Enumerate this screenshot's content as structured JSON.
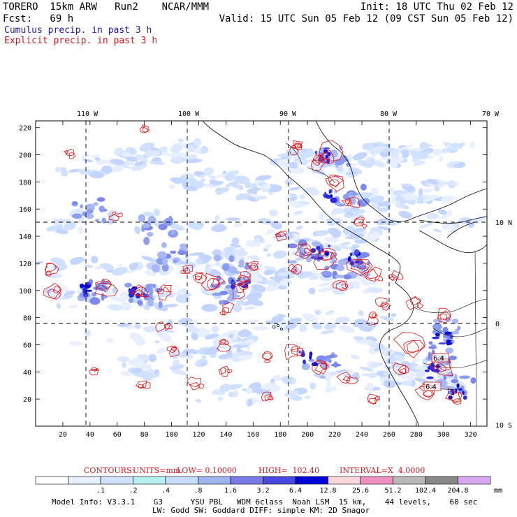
{
  "header": {
    "left1": "TORERO  15km ARW   Run2    NCAR/MMM",
    "right1": "Init: 18 UTC Thu 02 Feb 12",
    "left2": "Fcst:   69 h",
    "right2": "Valid: 15 UTC Sun 05 Feb 12 (09 CST Sun 05 Feb 12)",
    "field1": "Cumulus precip. in past 3 h",
    "field2": "Explicit precip. in past 3 h"
  },
  "map": {
    "lon_labels": [
      "110 W",
      "100 W",
      "90 W",
      "80 W",
      "70 W"
    ],
    "lat_labels": [
      "10 N",
      "0",
      "10 S"
    ],
    "x_ticks": [
      "20",
      "40",
      "60",
      "80",
      "100",
      "120",
      "140",
      "160",
      "180",
      "200",
      "220",
      "240",
      "260",
      "280",
      "300",
      "320"
    ],
    "y_ticks": [
      "20",
      "40",
      "60",
      "80",
      "100",
      "120",
      "140",
      "160",
      "180",
      "200",
      "220"
    ],
    "box_labels": [
      "6.4",
      "6.4"
    ]
  },
  "contours_line": {
    "title": "CONTOURS:",
    "units": "UNITS=mm",
    "low": "LOW= 0.10000",
    "high": "HIGH=  102.40",
    "interval": "INTERVAL=X  4.0000"
  },
  "colorbar": {
    "labels": [
      ".1",
      ".2",
      ".4",
      ".8",
      "1.6",
      "3.2",
      "6.4",
      "12.8",
      "25.6",
      "51.2",
      "102.4",
      "204.8"
    ],
    "unit": "mm",
    "colors": [
      "#ffffff",
      "#e6f0ff",
      "#d0e2ff",
      "#b8f0f0",
      "#c8dcff",
      "#a0b4f0",
      "#7878e8",
      "#4848e0",
      "#0000d8",
      "#f8d8dc",
      "#f090c0",
      "#b8b8b8",
      "#888888",
      "#d8a8f0"
    ]
  },
  "footer": {
    "line1": "Model Info: V3.3.1    G3      YSU PBL   WDM 6class  Noah LSM  15 km,    44 levels,    60 sec",
    "line2": "LW: Godd SW: Goddard DIFF: simple KM: 2D Smagor"
  }
}
